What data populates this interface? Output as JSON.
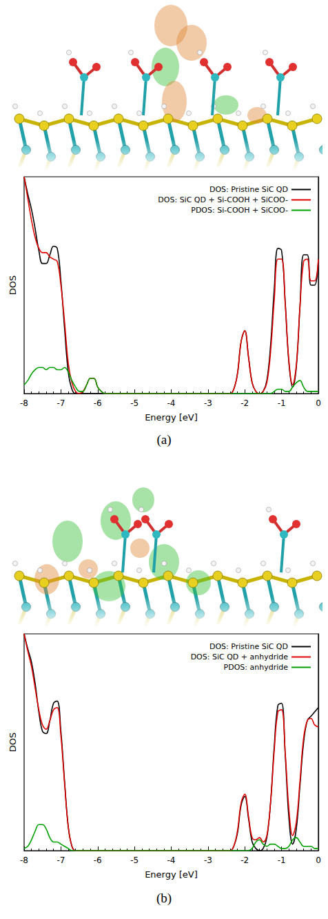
{
  "chart_data": [
    {
      "type": "line",
      "caption": "(a)",
      "x_label": "Energy [eV]",
      "y_label": "DOS",
      "x": [
        -8,
        -7.9,
        -7.8,
        -7.7,
        -7.6,
        -7.5,
        -7.4,
        -7.3,
        -7.2,
        -7.1,
        -7,
        -6.9,
        -6.8,
        -6.7,
        -6.6,
        -6.5,
        -6.4,
        -6.3,
        -6.2,
        -6.1,
        -6,
        -5.9,
        -5.8,
        -5.7,
        -5.6,
        -5.5,
        -5.4,
        -5.3,
        -5.2,
        -5.1,
        -5,
        -4.9,
        -4.8,
        -4.7,
        -4.6,
        -4.5,
        -4.4,
        -4.3,
        -4.2,
        -4.1,
        -4,
        -3.9,
        -3.8,
        -3.7,
        -3.6,
        -3.5,
        -3.4,
        -3.3,
        -3.2,
        -3.1,
        -3,
        -2.9,
        -2.8,
        -2.7,
        -2.6,
        -2.5,
        -2.4,
        -2.3,
        -2.2,
        -2.1,
        -2,
        -1.9,
        -1.8,
        -1.7,
        -1.6,
        -1.5,
        -1.4,
        -1.3,
        -1.2,
        -1.1,
        -1,
        -0.9,
        -0.8,
        -0.7,
        -0.6,
        -0.5,
        -0.4,
        -0.3,
        -0.2,
        -0.1,
        0
      ],
      "series": [
        {
          "name": "DOS: Pristine SiC QD",
          "color": "#000000",
          "values": [
            1.0,
            0.92,
            0.85,
            0.76,
            0.66,
            0.6,
            0.6,
            0.64,
            0.68,
            0.67,
            0.52,
            0.3,
            0.1,
            0.02,
            0,
            0,
            0,
            0,
            0,
            0,
            0,
            0,
            0,
            0,
            0,
            0,
            0,
            0,
            0,
            0,
            0,
            0,
            0,
            0,
            0,
            0,
            0,
            0,
            0,
            0,
            0,
            0,
            0,
            0,
            0,
            0,
            0,
            0,
            0,
            0,
            0,
            0,
            0,
            0,
            0,
            0,
            0,
            0.02,
            0.09,
            0.24,
            0.29,
            0.17,
            0.05,
            0.01,
            0,
            0.01,
            0.06,
            0.22,
            0.48,
            0.67,
            0.66,
            0.42,
            0.14,
            0.03,
            0.12,
            0.4,
            0.64,
            0.64,
            0.5,
            0.5,
            0.62
          ]
        },
        {
          "name": "DOS: SiC QD + Si-COOH + SiCOO-",
          "color": "#e00000",
          "values": [
            1.0,
            0.9,
            0.8,
            0.72,
            0.67,
            0.65,
            0.65,
            0.63,
            0.62,
            0.61,
            0.5,
            0.33,
            0.14,
            0.05,
            0.01,
            0,
            0.01,
            0.04,
            0.07,
            0.07,
            0.03,
            0.01,
            0,
            0,
            0,
            0,
            0,
            0,
            0,
            0,
            0,
            0,
            0,
            0,
            0,
            0,
            0,
            0,
            0,
            0,
            0,
            0,
            0,
            0,
            0,
            0,
            0,
            0,
            0,
            0,
            0,
            0,
            0,
            0,
            0,
            0,
            0,
            0.02,
            0.09,
            0.24,
            0.29,
            0.17,
            0.05,
            0.01,
            0,
            0.01,
            0.05,
            0.19,
            0.43,
            0.62,
            0.62,
            0.41,
            0.15,
            0.04,
            0.13,
            0.4,
            0.61,
            0.62,
            0.52,
            0.52,
            0.62
          ]
        },
        {
          "name": "PDOS: Si-COOH + SiCOO-",
          "color": "#00a000",
          "values": [
            0.04,
            0.06,
            0.09,
            0.11,
            0.12,
            0.12,
            0.11,
            0.12,
            0.12,
            0.11,
            0.11,
            0.12,
            0.1,
            0.06,
            0.03,
            0.01,
            0.01,
            0.04,
            0.07,
            0.07,
            0.03,
            0.01,
            0,
            0,
            0,
            0,
            0,
            0,
            0,
            0,
            0,
            0,
            0,
            0,
            0,
            0,
            0,
            0,
            0,
            0,
            0,
            0,
            0,
            0,
            0,
            0,
            0,
            0,
            0,
            0,
            0,
            0,
            0,
            0,
            0,
            0,
            0,
            0,
            0,
            0,
            0,
            0,
            0,
            0,
            0,
            0,
            0,
            0,
            0.01,
            0.02,
            0.02,
            0.01,
            0.01,
            0.03,
            0.05,
            0.06,
            0.03,
            0.01,
            0.01,
            0.01,
            0.01
          ]
        }
      ],
      "xlim": [
        -8,
        0
      ],
      "xticks": [
        -8,
        -7,
        -6,
        -5,
        -4,
        -3,
        -2,
        -1,
        0
      ],
      "ylim": [
        0,
        1
      ],
      "tick_labels": "x",
      "legend": "upper right",
      "grid": false
    },
    {
      "type": "line",
      "caption": "(b)",
      "x_label": "Energy [eV]",
      "y_label": "DOS",
      "x": [
        -8,
        -7.9,
        -7.8,
        -7.7,
        -7.6,
        -7.5,
        -7.4,
        -7.3,
        -7.2,
        -7.1,
        -7,
        -6.9,
        -6.8,
        -6.7,
        -6.6,
        -6.5,
        -6.4,
        -6.3,
        -6.2,
        -6.1,
        -6,
        -5.9,
        -5.8,
        -5.7,
        -5.6,
        -5.5,
        -5.4,
        -5.3,
        -5.2,
        -5.1,
        -5,
        -4.9,
        -4.8,
        -4.7,
        -4.6,
        -4.5,
        -4.4,
        -4.3,
        -4.2,
        -4.1,
        -4,
        -3.9,
        -3.8,
        -3.7,
        -3.6,
        -3.5,
        -3.4,
        -3.3,
        -3.2,
        -3.1,
        -3,
        -2.9,
        -2.8,
        -2.7,
        -2.6,
        -2.5,
        -2.4,
        -2.3,
        -2.2,
        -2.1,
        -2,
        -1.9,
        -1.8,
        -1.7,
        -1.6,
        -1.5,
        -1.4,
        -1.3,
        -1.2,
        -1.1,
        -1,
        -0.9,
        -0.8,
        -0.7,
        -0.6,
        -0.5,
        -0.4,
        -0.3,
        -0.2,
        -0.1,
        0
      ],
      "series": [
        {
          "name": "DOS: Pristine SiC QD",
          "color": "#000000",
          "values": [
            1.0,
            0.93,
            0.87,
            0.77,
            0.64,
            0.55,
            0.54,
            0.6,
            0.68,
            0.69,
            0.55,
            0.32,
            0.11,
            0.02,
            0,
            0,
            0,
            0,
            0,
            0,
            0,
            0,
            0,
            0,
            0,
            0,
            0,
            0,
            0,
            0,
            0,
            0,
            0,
            0,
            0,
            0,
            0,
            0,
            0,
            0,
            0,
            0,
            0,
            0,
            0,
            0,
            0,
            0,
            0,
            0,
            0,
            0,
            0,
            0,
            0,
            0,
            0,
            0.02,
            0.08,
            0.21,
            0.25,
            0.15,
            0.04,
            0.01,
            0,
            0.01,
            0.06,
            0.22,
            0.48,
            0.67,
            0.68,
            0.44,
            0.15,
            0.03,
            0.1,
            0.3,
            0.5,
            0.6,
            0.62,
            0.64,
            0.66
          ]
        },
        {
          "name": "DOS: SiC QD + anhydride",
          "color": "#e00000",
          "values": [
            1.0,
            0.92,
            0.85,
            0.75,
            0.65,
            0.58,
            0.56,
            0.6,
            0.65,
            0.66,
            0.53,
            0.31,
            0.11,
            0.02,
            0,
            0,
            0,
            0,
            0,
            0,
            0,
            0,
            0,
            0,
            0,
            0,
            0,
            0,
            0,
            0,
            0,
            0,
            0,
            0,
            0,
            0,
            0,
            0,
            0,
            0,
            0,
            0,
            0,
            0,
            0,
            0,
            0,
            0,
            0,
            0,
            0,
            0,
            0,
            0,
            0,
            0,
            0,
            0.02,
            0.09,
            0.22,
            0.26,
            0.16,
            0.06,
            0.05,
            0.06,
            0.04,
            0.07,
            0.22,
            0.46,
            0.64,
            0.65,
            0.45,
            0.19,
            0.07,
            0.13,
            0.32,
            0.52,
            0.6,
            0.61,
            0.58,
            0.57
          ]
        },
        {
          "name": "PDOS: anhydride",
          "color": "#00a000",
          "values": [
            0.01,
            0.02,
            0.05,
            0.09,
            0.12,
            0.12,
            0.1,
            0.06,
            0.04,
            0.04,
            0.03,
            0.02,
            0.01,
            0,
            0,
            0,
            0,
            0,
            0,
            0,
            0,
            0,
            0,
            0,
            0,
            0,
            0,
            0,
            0,
            0,
            0,
            0,
            0,
            0,
            0,
            0,
            0,
            0,
            0,
            0,
            0,
            0,
            0,
            0,
            0,
            0,
            0,
            0,
            0,
            0,
            0,
            0,
            0,
            0,
            0,
            0,
            0,
            0,
            0,
            0,
            0,
            0,
            0.01,
            0.04,
            0.05,
            0.03,
            0.02,
            0.03,
            0.03,
            0.02,
            0.01,
            0.01,
            0.02,
            0.05,
            0.06,
            0.04,
            0.02,
            0.02,
            0.02,
            0.01,
            0.01
          ]
        }
      ],
      "xlim": [
        -8,
        0
      ],
      "xticks": [
        -8,
        -7,
        -6,
        -5,
        -4,
        -3,
        -2,
        -1,
        0
      ],
      "ylim": [
        0,
        1
      ],
      "tick_labels": "x",
      "legend": "upper right",
      "grid": false
    }
  ]
}
